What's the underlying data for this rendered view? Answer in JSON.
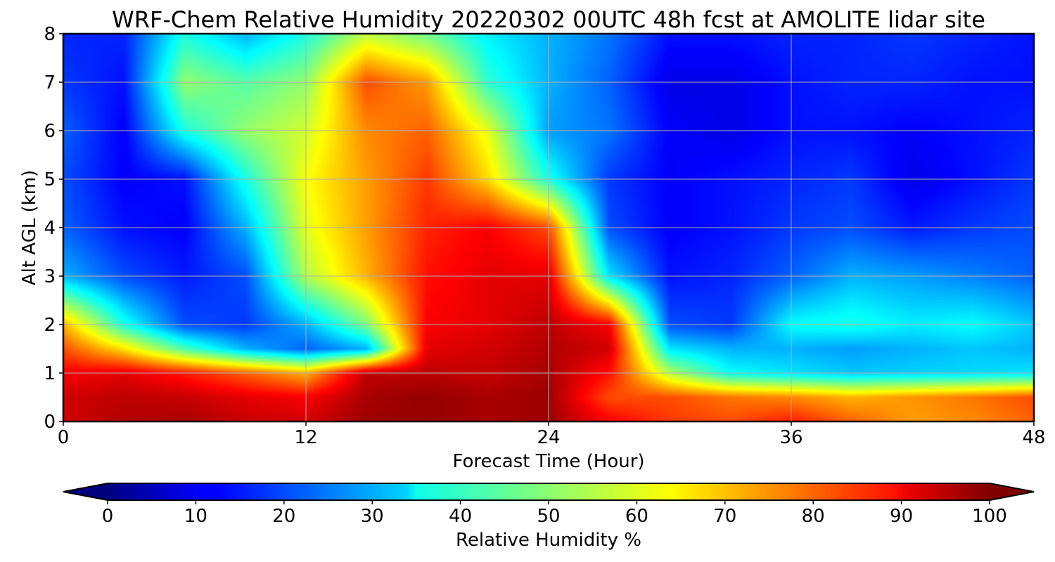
{
  "chart_data": {
    "type": "heatmap",
    "title": "WRF-Chem Relative Humidity 20220302 00UTC 48h fcst at AMOLITE lidar site",
    "xlabel": "Forecast Time (Hour)",
    "ylabel": "Alt AGL (km)",
    "xlim": [
      0,
      48
    ],
    "ylim": [
      0,
      8
    ],
    "xticks": [
      "0",
      "12",
      "24",
      "36",
      "48"
    ],
    "yticks": [
      "0",
      "1",
      "2",
      "3",
      "4",
      "5",
      "6",
      "7",
      "8"
    ],
    "grid": true,
    "x": [
      0,
      3,
      6,
      9,
      12,
      15,
      18,
      21,
      24,
      27,
      30,
      33,
      36,
      39,
      42,
      45,
      48
    ],
    "y": [
      0,
      0.5,
      1,
      1.5,
      2,
      3,
      4,
      5,
      6,
      7,
      8
    ],
    "z": [
      [
        92,
        95,
        96,
        93,
        92,
        97,
        98,
        96,
        97,
        88,
        82,
        80,
        85,
        78,
        72,
        74,
        78
      ],
      [
        92,
        94,
        93,
        90,
        88,
        96,
        98,
        96,
        97,
        80,
        80,
        76,
        74,
        70,
        73,
        76,
        80
      ],
      [
        88,
        90,
        85,
        78,
        70,
        94,
        94,
        93,
        96,
        86,
        55,
        38,
        35,
        32,
        33,
        34,
        35
      ],
      [
        80,
        65,
        45,
        30,
        22,
        30,
        90,
        92,
        95,
        92,
        35,
        30,
        30,
        28,
        30,
        32,
        30
      ],
      [
        70,
        40,
        20,
        18,
        30,
        50,
        88,
        90,
        94,
        88,
        20,
        18,
        38,
        40,
        36,
        38,
        32
      ],
      [
        30,
        20,
        15,
        20,
        55,
        70,
        86,
        90,
        90,
        35,
        14,
        16,
        22,
        30,
        28,
        25,
        22
      ],
      [
        22,
        14,
        12,
        30,
        60,
        72,
        84,
        88,
        80,
        20,
        12,
        14,
        18,
        20,
        15,
        18,
        20
      ],
      [
        20,
        12,
        14,
        40,
        62,
        72,
        82,
        66,
        40,
        18,
        12,
        14,
        16,
        18,
        10,
        14,
        18
      ],
      [
        22,
        12,
        40,
        52,
        58,
        74,
        78,
        60,
        28,
        24,
        12,
        10,
        14,
        14,
        12,
        14,
        16
      ],
      [
        18,
        14,
        52,
        46,
        52,
        80,
        72,
        42,
        30,
        22,
        10,
        10,
        14,
        16,
        16,
        14,
        14
      ],
      [
        16,
        16,
        40,
        30,
        40,
        56,
        48,
        36,
        30,
        24,
        14,
        14,
        16,
        16,
        18,
        16,
        14
      ]
    ],
    "colorbar": {
      "label": "Relative Humidity %",
      "ticks": [
        "0",
        "10",
        "20",
        "30",
        "40",
        "50",
        "60",
        "70",
        "80",
        "90",
        "100"
      ],
      "range": [
        0,
        100
      ],
      "colormap": "jet",
      "extend": "both"
    }
  }
}
